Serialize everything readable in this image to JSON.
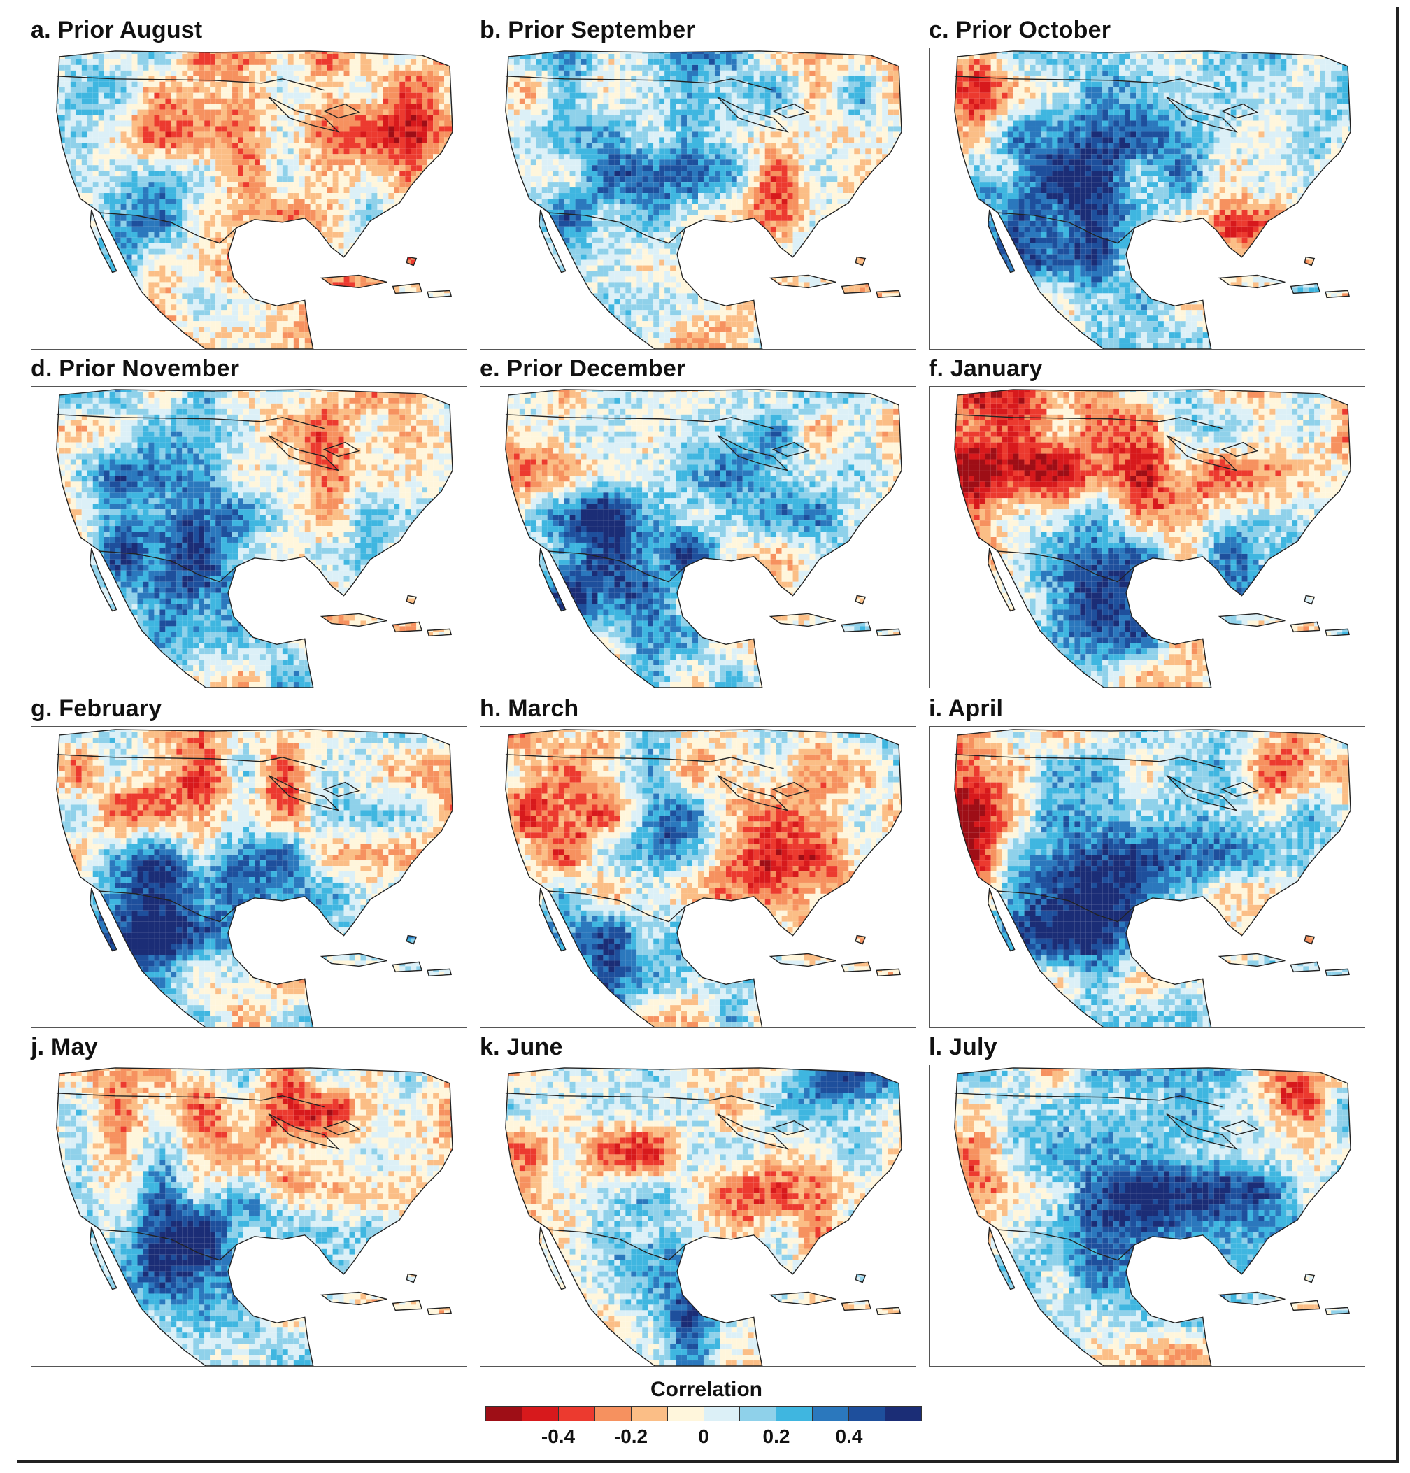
{
  "panels": [
    {
      "label": "a. Prior August",
      "scenario": 0
    },
    {
      "label": "b. Prior September",
      "scenario": 1
    },
    {
      "label": "c. Prior October",
      "scenario": 2
    },
    {
      "label": "d. Prior November",
      "scenario": 3
    },
    {
      "label": "e. Prior December",
      "scenario": 4
    },
    {
      "label": "f. January",
      "scenario": 5
    },
    {
      "label": "g. February",
      "scenario": 6
    },
    {
      "label": "h. March",
      "scenario": 7
    },
    {
      "label": "i. April",
      "scenario": 8
    },
    {
      "label": "j. May",
      "scenario": 9
    },
    {
      "label": "k. June",
      "scenario": 10
    },
    {
      "label": "l. July",
      "scenario": 11
    }
  ],
  "colorbar": {
    "title": "Correlation",
    "colors": [
      "#9e0e16",
      "#d7191c",
      "#ec3a2f",
      "#f6915f",
      "#fbbe86",
      "#fff6dc",
      "#dcf0f7",
      "#8fd1ea",
      "#3fb6e0",
      "#2b78bd",
      "#1e4f9c",
      "#1b2d76"
    ],
    "ticks": [
      {
        "label": "-0.4",
        "value": -0.4
      },
      {
        "label": "-0.2",
        "value": -0.2
      },
      {
        "label": "0",
        "value": 0
      },
      {
        "label": "0.2",
        "value": 0.2
      },
      {
        "label": "0.4",
        "value": 0.4
      }
    ],
    "range": [
      -0.6,
      0.6
    ]
  }
}
